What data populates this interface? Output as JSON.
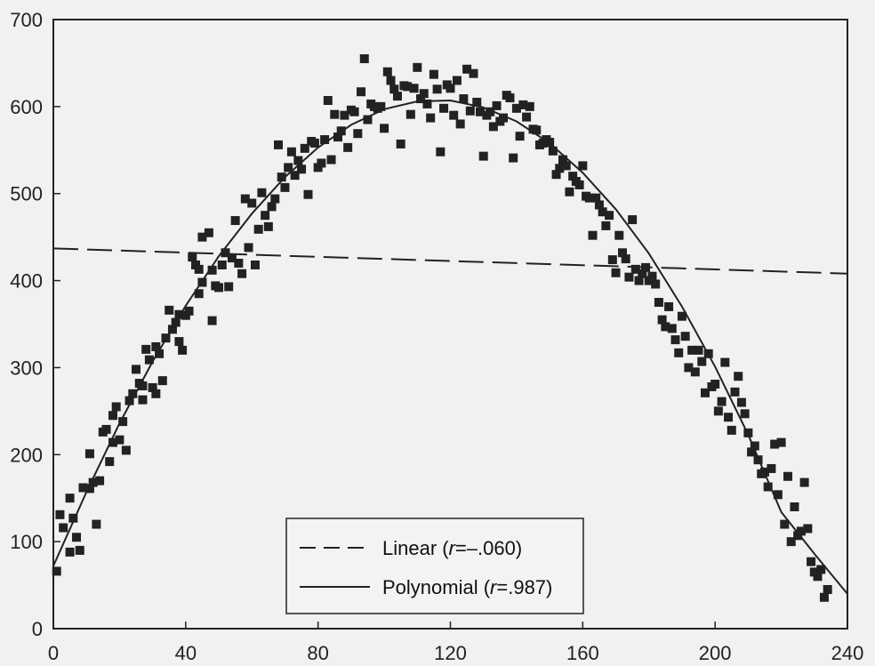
{
  "chart_data": {
    "type": "scatter",
    "xlim": [
      0,
      240
    ],
    "ylim": [
      0,
      700
    ],
    "x_ticks": [
      "0",
      "40",
      "80",
      "120",
      "160",
      "200",
      "240"
    ],
    "y_ticks": [
      "0",
      "100",
      "200",
      "300",
      "400",
      "500",
      "600",
      "700"
    ],
    "x_tick_values": [
      0,
      40,
      80,
      120,
      160,
      200,
      240
    ],
    "y_tick_values": [
      0,
      100,
      200,
      300,
      400,
      500,
      600,
      700
    ],
    "grid": false,
    "legend_position": "bottom-center",
    "legend": {
      "linear_prefix": "Linear (",
      "linear_r": "r",
      "linear_suffix": "=–.060)",
      "poly_prefix": "Polynomial (",
      "poly_r": "r",
      "poly_suffix": "=.987)"
    },
    "fits": [
      {
        "style": "dashed",
        "points": [
          [
            0,
            437
          ],
          [
            240,
            408
          ]
        ]
      },
      {
        "style": "solid",
        "points": [
          [
            0,
            72
          ],
          [
            10,
            157
          ],
          [
            20,
            236
          ],
          [
            30,
            307
          ],
          [
            40,
            371
          ],
          [
            50,
            428
          ],
          [
            60,
            477
          ],
          [
            70,
            519
          ],
          [
            80,
            553
          ],
          [
            90,
            579
          ],
          [
            100,
            597
          ],
          [
            110,
            606
          ],
          [
            120,
            607
          ],
          [
            130,
            599
          ],
          [
            140,
            583
          ],
          [
            150,
            558
          ],
          [
            160,
            524
          ],
          [
            170,
            482
          ],
          [
            180,
            431
          ],
          [
            190,
            370
          ],
          [
            200,
            301
          ],
          [
            210,
            223
          ],
          [
            220,
            134
          ],
          [
            230,
            86
          ],
          [
            240,
            40
          ]
        ]
      }
    ],
    "points": [
      [
        1,
        66
      ],
      [
        2,
        131
      ],
      [
        3,
        116
      ],
      [
        5,
        88
      ],
      [
        5,
        150
      ],
      [
        6,
        127
      ],
      [
        7,
        105
      ],
      [
        8,
        90
      ],
      [
        9,
        162
      ],
      [
        11,
        201
      ],
      [
        11,
        161
      ],
      [
        12,
        168
      ],
      [
        13,
        120
      ],
      [
        14,
        170
      ],
      [
        15,
        226
      ],
      [
        16,
        229
      ],
      [
        17,
        192
      ],
      [
        18,
        214
      ],
      [
        18,
        245
      ],
      [
        19,
        255
      ],
      [
        20,
        217
      ],
      [
        21,
        238
      ],
      [
        22,
        205
      ],
      [
        23,
        262
      ],
      [
        24,
        270
      ],
      [
        25,
        298
      ],
      [
        26,
        282
      ],
      [
        27,
        279
      ],
      [
        27,
        263
      ],
      [
        28,
        321
      ],
      [
        29,
        309
      ],
      [
        30,
        277
      ],
      [
        31,
        324
      ],
      [
        31,
        270
      ],
      [
        32,
        316
      ],
      [
        33,
        285
      ],
      [
        34,
        334
      ],
      [
        35,
        366
      ],
      [
        36,
        344
      ],
      [
        37,
        352
      ],
      [
        38,
        361
      ],
      [
        38,
        330
      ],
      [
        39,
        320
      ],
      [
        40,
        360
      ],
      [
        41,
        365
      ],
      [
        42,
        427
      ],
      [
        43,
        418
      ],
      [
        44,
        413
      ],
      [
        44,
        385
      ],
      [
        45,
        398
      ],
      [
        45,
        450
      ],
      [
        47,
        455
      ],
      [
        48,
        354
      ],
      [
        48,
        412
      ],
      [
        49,
        394
      ],
      [
        50,
        392
      ],
      [
        51,
        418
      ],
      [
        52,
        432
      ],
      [
        53,
        393
      ],
      [
        54,
        426
      ],
      [
        55,
        469
      ],
      [
        56,
        420
      ],
      [
        57,
        408
      ],
      [
        58,
        494
      ],
      [
        59,
        438
      ],
      [
        60,
        489
      ],
      [
        61,
        418
      ],
      [
        62,
        459
      ],
      [
        63,
        501
      ],
      [
        64,
        475
      ],
      [
        65,
        462
      ],
      [
        66,
        485
      ],
      [
        67,
        494
      ],
      [
        68,
        556
      ],
      [
        69,
        519
      ],
      [
        70,
        507
      ],
      [
        71,
        530
      ],
      [
        72,
        548
      ],
      [
        73,
        521
      ],
      [
        74,
        538
      ],
      [
        75,
        528
      ],
      [
        76,
        552
      ],
      [
        77,
        499
      ],
      [
        78,
        560
      ],
      [
        79,
        558
      ],
      [
        80,
        530
      ],
      [
        81,
        535
      ],
      [
        82,
        562
      ],
      [
        83,
        607
      ],
      [
        84,
        539
      ],
      [
        85,
        591
      ],
      [
        86,
        565
      ],
      [
        87,
        572
      ],
      [
        88,
        590
      ],
      [
        89,
        553
      ],
      [
        90,
        596
      ],
      [
        91,
        594
      ],
      [
        92,
        569
      ],
      [
        93,
        617
      ],
      [
        94,
        655
      ],
      [
        95,
        585
      ],
      [
        96,
        603
      ],
      [
        97,
        600
      ],
      [
        98,
        598
      ],
      [
        99,
        600
      ],
      [
        100,
        575
      ],
      [
        101,
        640
      ],
      [
        102,
        630
      ],
      [
        103,
        620
      ],
      [
        104,
        612
      ],
      [
        105,
        557
      ],
      [
        106,
        624
      ],
      [
        107,
        623
      ],
      [
        108,
        591
      ],
      [
        109,
        621
      ],
      [
        110,
        645
      ],
      [
        111,
        609
      ],
      [
        112,
        615
      ],
      [
        113,
        603
      ],
      [
        114,
        587
      ],
      [
        115,
        637
      ],
      [
        116,
        620
      ],
      [
        117,
        548
      ],
      [
        118,
        598
      ],
      [
        119,
        625
      ],
      [
        120,
        621
      ],
      [
        121,
        590
      ],
      [
        122,
        630
      ],
      [
        123,
        580
      ],
      [
        124,
        609
      ],
      [
        125,
        643
      ],
      [
        126,
        595
      ],
      [
        127,
        638
      ],
      [
        128,
        605
      ],
      [
        129,
        594
      ],
      [
        130,
        543
      ],
      [
        131,
        590
      ],
      [
        132,
        594
      ],
      [
        133,
        577
      ],
      [
        134,
        601
      ],
      [
        135,
        583
      ],
      [
        136,
        587
      ],
      [
        137,
        613
      ],
      [
        138,
        610
      ],
      [
        139,
        541
      ],
      [
        140,
        598
      ],
      [
        141,
        566
      ],
      [
        142,
        602
      ],
      [
        143,
        588
      ],
      [
        144,
        600
      ],
      [
        145,
        574
      ],
      [
        146,
        573
      ],
      [
        147,
        556
      ],
      [
        148,
        558
      ],
      [
        149,
        562
      ],
      [
        150,
        559
      ],
      [
        151,
        549
      ],
      [
        152,
        522
      ],
      [
        153,
        529
      ],
      [
        154,
        539
      ],
      [
        155,
        532
      ],
      [
        156,
        502
      ],
      [
        157,
        520
      ],
      [
        158,
        514
      ],
      [
        159,
        510
      ],
      [
        160,
        532
      ],
      [
        161,
        497
      ],
      [
        162,
        495
      ],
      [
        163,
        452
      ],
      [
        164,
        495
      ],
      [
        165,
        487
      ],
      [
        166,
        479
      ],
      [
        167,
        463
      ],
      [
        168,
        475
      ],
      [
        169,
        424
      ],
      [
        170,
        409
      ],
      [
        171,
        452
      ],
      [
        172,
        432
      ],
      [
        173,
        425
      ],
      [
        174,
        404
      ],
      [
        175,
        470
      ],
      [
        176,
        413
      ],
      [
        177,
        400
      ],
      [
        178,
        408
      ],
      [
        179,
        415
      ],
      [
        180,
        400
      ],
      [
        181,
        405
      ],
      [
        182,
        396
      ],
      [
        183,
        375
      ],
      [
        184,
        355
      ],
      [
        185,
        347
      ],
      [
        186,
        370
      ],
      [
        187,
        345
      ],
      [
        188,
        332
      ],
      [
        189,
        317
      ],
      [
        190,
        359
      ],
      [
        191,
        336
      ],
      [
        192,
        300
      ],
      [
        193,
        320
      ],
      [
        194,
        295
      ],
      [
        195,
        320
      ],
      [
        196,
        307
      ],
      [
        197,
        271
      ],
      [
        198,
        316
      ],
      [
        199,
        278
      ],
      [
        200,
        281
      ],
      [
        201,
        250
      ],
      [
        202,
        261
      ],
      [
        203,
        306
      ],
      [
        204,
        243
      ],
      [
        205,
        228
      ],
      [
        206,
        272
      ],
      [
        207,
        290
      ],
      [
        208,
        260
      ],
      [
        209,
        247
      ],
      [
        210,
        225
      ],
      [
        211,
        203
      ],
      [
        212,
        210
      ],
      [
        213,
        194
      ],
      [
        214,
        178
      ],
      [
        215,
        180
      ],
      [
        216,
        163
      ],
      [
        217,
        184
      ],
      [
        218,
        212
      ],
      [
        219,
        154
      ],
      [
        220,
        214
      ],
      [
        221,
        120
      ],
      [
        222,
        175
      ],
      [
        223,
        100
      ],
      [
        224,
        140
      ],
      [
        225,
        107
      ],
      [
        226,
        112
      ],
      [
        227,
        168
      ],
      [
        228,
        115
      ],
      [
        229,
        77
      ],
      [
        230,
        65
      ],
      [
        231,
        60
      ],
      [
        232,
        68
      ],
      [
        233,
        36
      ],
      [
        234,
        45
      ]
    ]
  }
}
